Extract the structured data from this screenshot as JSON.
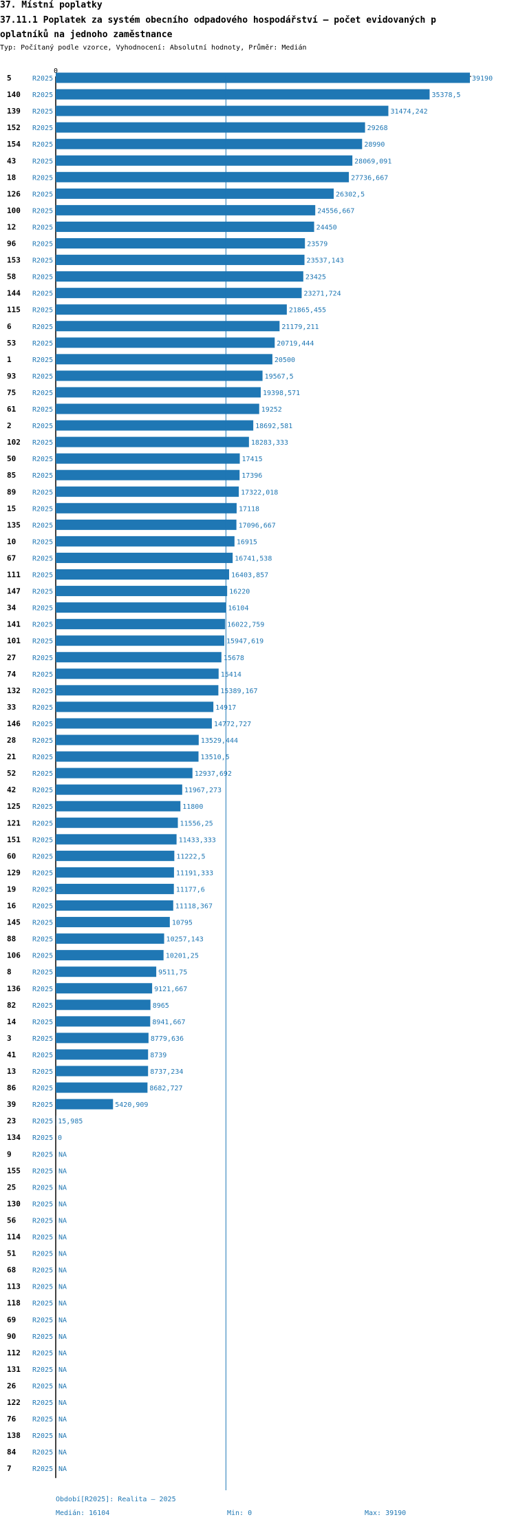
{
  "header": {
    "section": "37. Místní poplatky",
    "title_line1": "37.11.1 Poplatek za systém obecního odpadového hospodářství – počet evidovaných p",
    "title_line2": "oplatníků na jednoho zaměstnance",
    "subtitle": "Typ: Počítaný podle vzorce, Vyhodnocení: Absolutní hodnoty, Průměr: Medián"
  },
  "footer": {
    "period": "Období[R2025]: Realita – 2025",
    "median": "Medián: 16104",
    "min": "Min: 0",
    "max": "Max: 39190"
  },
  "colors": {
    "bar": "#1f77b4",
    "median_line": "#1f77b4",
    "axis": "#000000"
  },
  "chart_data": {
    "type": "bar",
    "orientation": "horizontal",
    "series_name": "R2025",
    "axis_zero_label": "0",
    "xlim": [
      0,
      39190
    ],
    "median": 16104,
    "rows": [
      {
        "id": "5",
        "value": 39190,
        "label": "39190"
      },
      {
        "id": "140",
        "value": 35378.5,
        "label": "35378,5"
      },
      {
        "id": "139",
        "value": 31474.242,
        "label": "31474,242"
      },
      {
        "id": "152",
        "value": 29268,
        "label": "29268"
      },
      {
        "id": "154",
        "value": 28990,
        "label": "28990"
      },
      {
        "id": "43",
        "value": 28069.091,
        "label": "28069,091"
      },
      {
        "id": "18",
        "value": 27736.667,
        "label": "27736,667"
      },
      {
        "id": "126",
        "value": 26302.5,
        "label": "26302,5"
      },
      {
        "id": "100",
        "value": 24556.667,
        "label": "24556,667"
      },
      {
        "id": "12",
        "value": 24450,
        "label": "24450"
      },
      {
        "id": "96",
        "value": 23579,
        "label": "23579"
      },
      {
        "id": "153",
        "value": 23537.143,
        "label": "23537,143"
      },
      {
        "id": "58",
        "value": 23425,
        "label": "23425"
      },
      {
        "id": "144",
        "value": 23271.724,
        "label": "23271,724"
      },
      {
        "id": "115",
        "value": 21865.455,
        "label": "21865,455"
      },
      {
        "id": "6",
        "value": 21179.211,
        "label": "21179,211"
      },
      {
        "id": "53",
        "value": 20719.444,
        "label": "20719,444"
      },
      {
        "id": "1",
        "value": 20500,
        "label": "20500"
      },
      {
        "id": "93",
        "value": 19567.5,
        "label": "19567,5"
      },
      {
        "id": "75",
        "value": 19398.571,
        "label": "19398,571"
      },
      {
        "id": "61",
        "value": 19252,
        "label": "19252"
      },
      {
        "id": "2",
        "value": 18692.581,
        "label": "18692,581"
      },
      {
        "id": "102",
        "value": 18283.333,
        "label": "18283,333"
      },
      {
        "id": "50",
        "value": 17415,
        "label": "17415"
      },
      {
        "id": "85",
        "value": 17396,
        "label": "17396"
      },
      {
        "id": "89",
        "value": 17322.018,
        "label": "17322,018"
      },
      {
        "id": "15",
        "value": 17118,
        "label": "17118"
      },
      {
        "id": "135",
        "value": 17096.667,
        "label": "17096,667"
      },
      {
        "id": "10",
        "value": 16915,
        "label": "16915"
      },
      {
        "id": "67",
        "value": 16741.538,
        "label": "16741,538"
      },
      {
        "id": "111",
        "value": 16403.857,
        "label": "16403,857"
      },
      {
        "id": "147",
        "value": 16220,
        "label": "16220"
      },
      {
        "id": "34",
        "value": 16104,
        "label": "16104"
      },
      {
        "id": "141",
        "value": 16022.759,
        "label": "16022,759"
      },
      {
        "id": "101",
        "value": 15947.619,
        "label": "15947,619"
      },
      {
        "id": "27",
        "value": 15678,
        "label": "15678"
      },
      {
        "id": "74",
        "value": 15414,
        "label": "15414"
      },
      {
        "id": "132",
        "value": 15389.167,
        "label": "15389,167"
      },
      {
        "id": "33",
        "value": 14917,
        "label": "14917"
      },
      {
        "id": "146",
        "value": 14772.727,
        "label": "14772,727"
      },
      {
        "id": "28",
        "value": 13529.444,
        "label": "13529,444"
      },
      {
        "id": "21",
        "value": 13510.5,
        "label": "13510,5"
      },
      {
        "id": "52",
        "value": 12937.692,
        "label": "12937,692"
      },
      {
        "id": "42",
        "value": 11967.273,
        "label": "11967,273"
      },
      {
        "id": "125",
        "value": 11800,
        "label": "11800"
      },
      {
        "id": "121",
        "value": 11556.25,
        "label": "11556,25"
      },
      {
        "id": "151",
        "value": 11433.333,
        "label": "11433,333"
      },
      {
        "id": "60",
        "value": 11222.5,
        "label": "11222,5"
      },
      {
        "id": "129",
        "value": 11191.333,
        "label": "11191,333"
      },
      {
        "id": "19",
        "value": 11177.6,
        "label": "11177,6"
      },
      {
        "id": "16",
        "value": 11118.367,
        "label": "11118,367"
      },
      {
        "id": "145",
        "value": 10795,
        "label": "10795"
      },
      {
        "id": "88",
        "value": 10257.143,
        "label": "10257,143"
      },
      {
        "id": "106",
        "value": 10201.25,
        "label": "10201,25"
      },
      {
        "id": "8",
        "value": 9511.75,
        "label": "9511,75"
      },
      {
        "id": "136",
        "value": 9121.667,
        "label": "9121,667"
      },
      {
        "id": "82",
        "value": 8965,
        "label": "8965"
      },
      {
        "id": "14",
        "value": 8941.667,
        "label": "8941,667"
      },
      {
        "id": "3",
        "value": 8779.636,
        "label": "8779,636"
      },
      {
        "id": "41",
        "value": 8739,
        "label": "8739"
      },
      {
        "id": "13",
        "value": 8737.234,
        "label": "8737,234"
      },
      {
        "id": "86",
        "value": 8682.727,
        "label": "8682,727"
      },
      {
        "id": "39",
        "value": 5420.909,
        "label": "5420,909"
      },
      {
        "id": "23",
        "value": 15.985,
        "label": "15,985"
      },
      {
        "id": "134",
        "value": 0,
        "label": "0"
      },
      {
        "id": "9",
        "value": null,
        "label": "NA"
      },
      {
        "id": "155",
        "value": null,
        "label": "NA"
      },
      {
        "id": "25",
        "value": null,
        "label": "NA"
      },
      {
        "id": "130",
        "value": null,
        "label": "NA"
      },
      {
        "id": "56",
        "value": null,
        "label": "NA"
      },
      {
        "id": "114",
        "value": null,
        "label": "NA"
      },
      {
        "id": "51",
        "value": null,
        "label": "NA"
      },
      {
        "id": "68",
        "value": null,
        "label": "NA"
      },
      {
        "id": "113",
        "value": null,
        "label": "NA"
      },
      {
        "id": "118",
        "value": null,
        "label": "NA"
      },
      {
        "id": "69",
        "value": null,
        "label": "NA"
      },
      {
        "id": "90",
        "value": null,
        "label": "NA"
      },
      {
        "id": "112",
        "value": null,
        "label": "NA"
      },
      {
        "id": "131",
        "value": null,
        "label": "NA"
      },
      {
        "id": "26",
        "value": null,
        "label": "NA"
      },
      {
        "id": "122",
        "value": null,
        "label": "NA"
      },
      {
        "id": "76",
        "value": null,
        "label": "NA"
      },
      {
        "id": "138",
        "value": null,
        "label": "NA"
      },
      {
        "id": "84",
        "value": null,
        "label": "NA"
      },
      {
        "id": "7",
        "value": null,
        "label": "NA"
      }
    ]
  }
}
